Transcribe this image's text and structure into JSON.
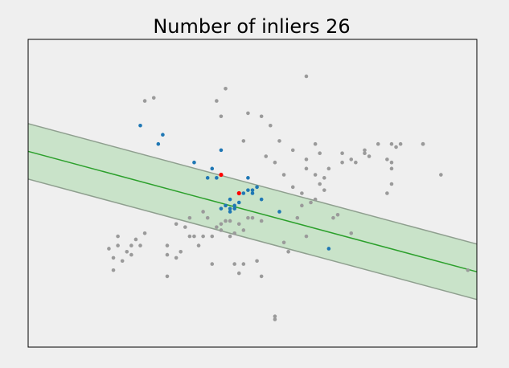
{
  "chart_data": {
    "type": "scatter",
    "title": "Number of inliers 26",
    "xlabel": "",
    "ylabel": "",
    "axes_visible": false,
    "grid": false,
    "legend": "none",
    "colors": {
      "background": "#efefef",
      "plot_background": "#efefef",
      "frame": "#000000",
      "band_fill": "#c9e3c9",
      "band_edge": "#8f9f8f",
      "fit_line": "#2ca02c",
      "outlier": "#9a9a9a",
      "inlier": "#1f77b4",
      "sample": "#ff0000"
    },
    "fit_line": {
      "x": [
        0.45,
        0.68
      ],
      "y": [
        0.46,
        0.37
      ]
    },
    "band_half_height": 0.09,
    "outliers": [
      [
        0.42,
        0.8
      ],
      [
        0.49,
        0.76
      ],
      [
        0.52,
        0.75
      ],
      [
        0.54,
        0.72
      ],
      [
        0.62,
        0.88
      ],
      [
        0.56,
        0.67
      ],
      [
        0.53,
        0.62
      ],
      [
        0.55,
        0.6
      ],
      [
        0.57,
        0.56
      ],
      [
        0.59,
        0.52
      ],
      [
        0.61,
        0.5
      ],
      [
        0.63,
        0.47
      ],
      [
        0.64,
        0.48
      ],
      [
        0.65,
        0.53
      ],
      [
        0.66,
        0.51
      ],
      [
        0.62,
        0.58
      ],
      [
        0.62,
        0.61
      ],
      [
        0.64,
        0.56
      ],
      [
        0.65,
        0.63
      ],
      [
        0.7,
        0.63
      ],
      [
        0.7,
        0.6
      ],
      [
        0.72,
        0.61
      ],
      [
        0.73,
        0.6
      ],
      [
        0.75,
        0.63
      ],
      [
        0.76,
        0.62
      ],
      [
        0.75,
        0.64
      ],
      [
        0.8,
        0.61
      ],
      [
        0.81,
        0.6
      ],
      [
        0.81,
        0.66
      ],
      [
        0.82,
        0.65
      ],
      [
        0.83,
        0.66
      ],
      [
        0.88,
        0.66
      ],
      [
        0.88,
        0.66
      ],
      [
        0.92,
        0.56
      ],
      [
        0.81,
        0.53
      ],
      [
        0.8,
        0.5
      ],
      [
        0.69,
        0.43
      ],
      [
        0.68,
        0.42
      ],
      [
        0.61,
        0.46
      ],
      [
        0.6,
        0.42
      ],
      [
        0.62,
        0.36
      ],
      [
        0.58,
        0.31
      ],
      [
        0.57,
        0.34
      ],
      [
        0.72,
        0.37
      ],
      [
        0.51,
        0.28
      ],
      [
        0.52,
        0.23
      ],
      [
        0.48,
        0.27
      ],
      [
        0.47,
        0.24
      ],
      [
        0.45,
        0.41
      ],
      [
        0.43,
        0.38
      ],
      [
        0.43,
        0.4
      ],
      [
        0.44,
        0.41
      ],
      [
        0.45,
        0.36
      ],
      [
        0.46,
        0.37
      ],
      [
        0.47,
        0.4
      ],
      [
        0.49,
        0.42
      ],
      [
        0.48,
        0.38
      ],
      [
        0.5,
        0.42
      ],
      [
        0.52,
        0.41
      ],
      [
        0.39,
        0.44
      ],
      [
        0.4,
        0.42
      ],
      [
        0.42,
        0.39
      ],
      [
        0.41,
        0.36
      ],
      [
        0.36,
        0.36
      ],
      [
        0.39,
        0.36
      ],
      [
        0.33,
        0.4
      ],
      [
        0.35,
        0.39
      ],
      [
        0.36,
        0.42
      ],
      [
        0.37,
        0.36
      ],
      [
        0.38,
        0.33
      ],
      [
        0.34,
        0.31
      ],
      [
        0.31,
        0.33
      ],
      [
        0.31,
        0.3
      ],
      [
        0.33,
        0.29
      ],
      [
        0.26,
        0.37
      ],
      [
        0.24,
        0.35
      ],
      [
        0.25,
        0.33
      ],
      [
        0.23,
        0.3
      ],
      [
        0.21,
        0.28
      ],
      [
        0.22,
        0.31
      ],
      [
        0.19,
        0.29
      ],
      [
        0.19,
        0.25
      ],
      [
        0.2,
        0.33
      ],
      [
        0.2,
        0.36
      ],
      [
        0.18,
        0.32
      ],
      [
        0.23,
        0.33
      ],
      [
        0.31,
        0.23
      ],
      [
        0.41,
        0.27
      ],
      [
        0.46,
        0.27
      ],
      [
        0.55,
        0.1
      ],
      [
        0.55,
        0.09
      ],
      [
        0.98,
        0.25
      ],
      [
        0.66,
        0.55
      ],
      [
        0.59,
        0.64
      ],
      [
        0.48,
        0.67
      ],
      [
        0.67,
        0.58
      ],
      [
        0.64,
        0.66
      ],
      [
        0.81,
        0.58
      ],
      [
        0.78,
        0.66
      ],
      [
        0.43,
        0.75
      ],
      [
        0.28,
        0.81
      ],
      [
        0.26,
        0.8
      ],
      [
        0.44,
        0.84
      ]
    ],
    "inliers": [
      [
        0.25,
        0.72
      ],
      [
        0.3,
        0.69
      ],
      [
        0.29,
        0.66
      ],
      [
        0.37,
        0.6
      ],
      [
        0.41,
        0.58
      ],
      [
        0.42,
        0.55
      ],
      [
        0.4,
        0.55
      ],
      [
        0.43,
        0.64
      ],
      [
        0.46,
        0.46
      ],
      [
        0.45,
        0.48
      ],
      [
        0.45,
        0.44
      ],
      [
        0.47,
        0.5
      ],
      [
        0.48,
        0.5
      ],
      [
        0.49,
        0.51
      ],
      [
        0.5,
        0.51
      ],
      [
        0.51,
        0.52
      ],
      [
        0.5,
        0.5
      ],
      [
        0.52,
        0.48
      ],
      [
        0.56,
        0.44
      ],
      [
        0.67,
        0.32
      ],
      [
        0.45,
        0.45
      ],
      [
        0.46,
        0.45
      ],
      [
        0.44,
        0.46
      ],
      [
        0.43,
        0.45
      ],
      [
        0.47,
        0.47
      ],
      [
        0.49,
        0.55
      ]
    ],
    "samples": [
      [
        0.43,
        0.56
      ],
      [
        0.47,
        0.5
      ]
    ]
  }
}
